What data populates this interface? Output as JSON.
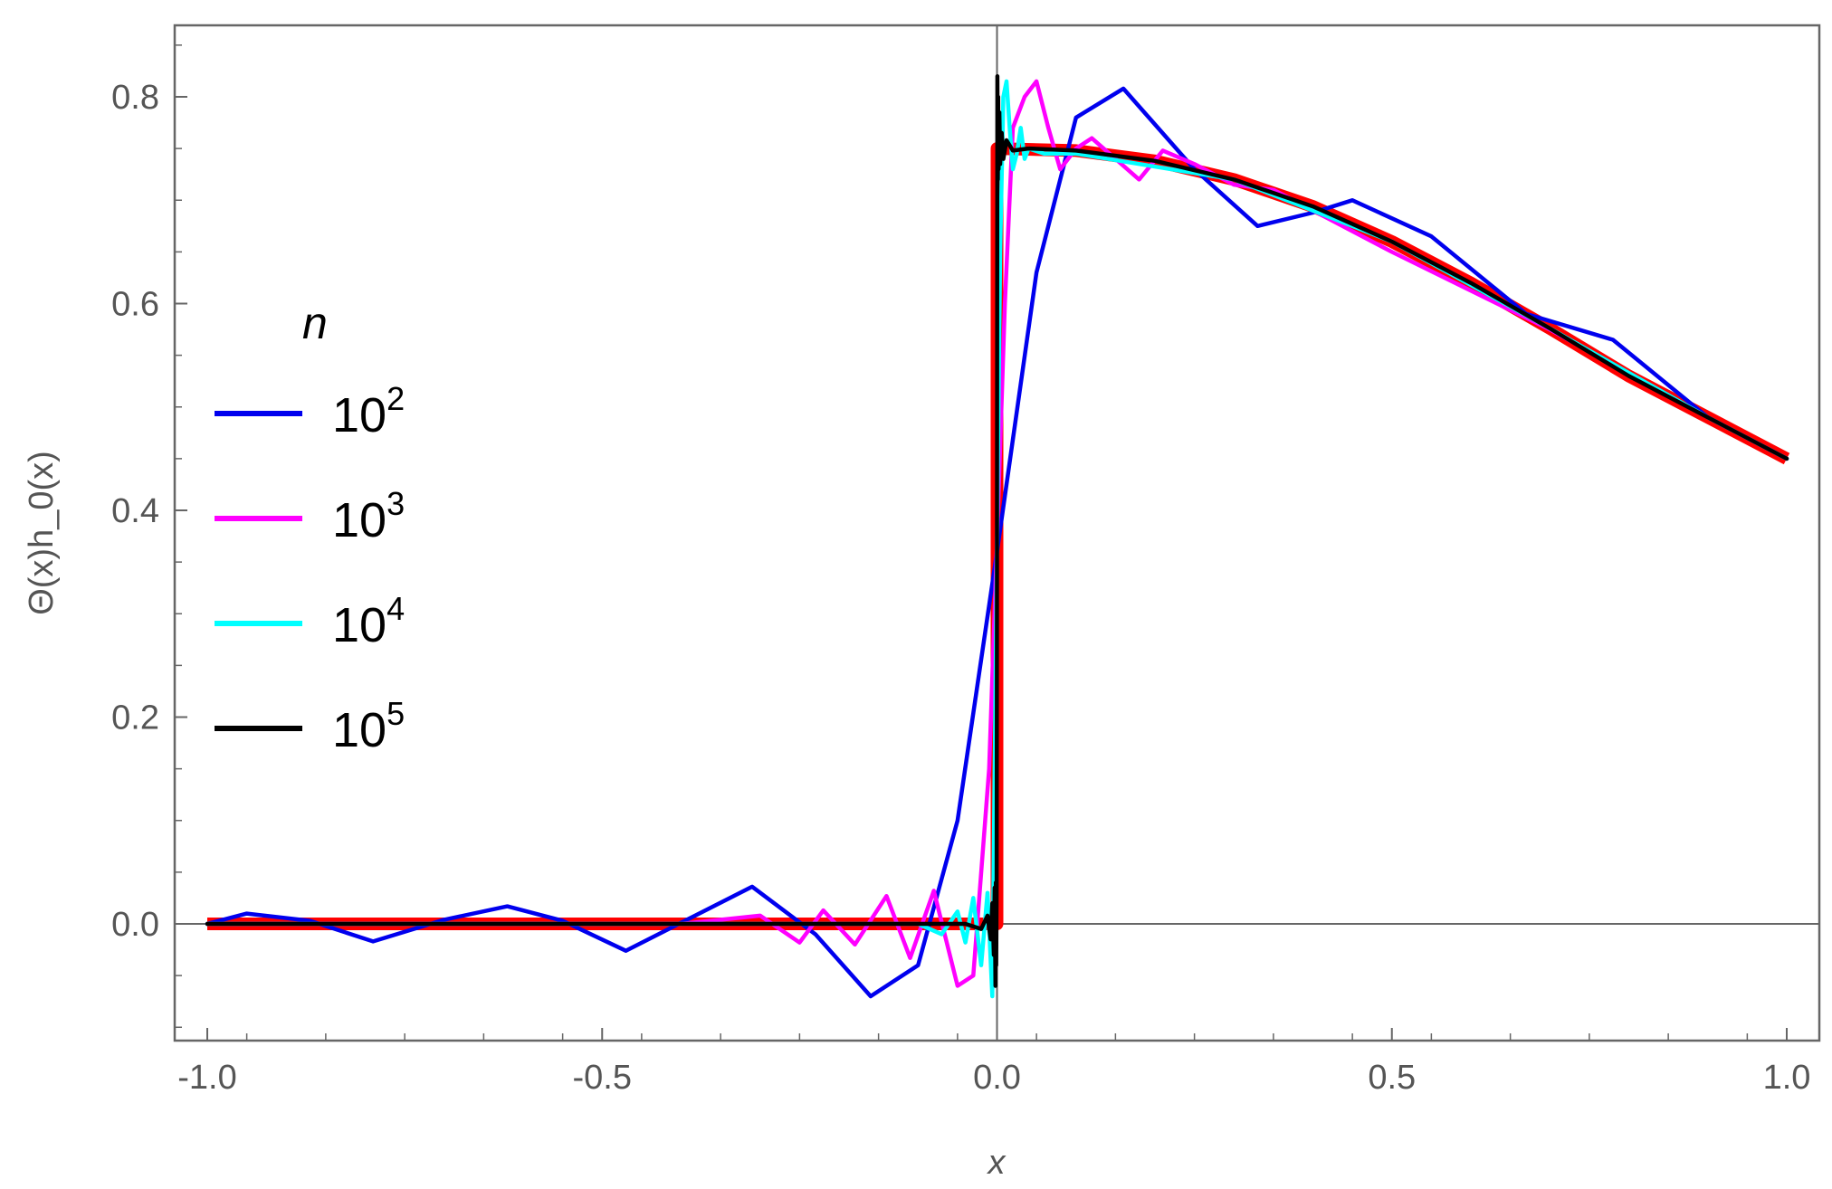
{
  "chart_data": {
    "type": "line",
    "title": "",
    "xlabel": "x",
    "ylabel": "Θ(x)h_0(x)",
    "xlim": [
      -1.0,
      1.0
    ],
    "ylim": [
      -0.115,
      0.865
    ],
    "x_ticks": [
      -1.0,
      -0.5,
      0.0,
      0.5,
      1.0
    ],
    "x_tick_labels": [
      "-1.0",
      "-0.5",
      "0.0",
      "0.5",
      "1.0"
    ],
    "y_ticks": [
      0.0,
      0.2,
      0.4,
      0.6,
      0.8
    ],
    "y_tick_labels": [
      "0.0",
      "0.2",
      "0.4",
      "0.6",
      "0.8"
    ],
    "grid": false,
    "legend": {
      "title": "n",
      "placement": "left",
      "entries": [
        {
          "base": "10",
          "exp": "2",
          "color": "#0000ee"
        },
        {
          "base": "10",
          "exp": "3",
          "color": "#ff00ff"
        },
        {
          "base": "10",
          "exp": "4",
          "color": "#00ffff"
        },
        {
          "base": "10",
          "exp": "5",
          "color": "#000000"
        }
      ]
    },
    "series": [
      {
        "color": "#ff0000",
        "x": [
          -1.0,
          0.0,
          0.0,
          0.1,
          0.2,
          0.3,
          0.4,
          0.5,
          0.6,
          0.7,
          0.8,
          0.9,
          1.0
        ],
        "y": [
          0.0,
          0.0,
          0.75,
          0.748,
          0.738,
          0.72,
          0.694,
          0.66,
          0.62,
          0.576,
          0.53,
          0.49,
          0.45
        ]
      },
      {
        "color": "#0000ee",
        "x": [
          -1.0,
          -0.95,
          -0.87,
          -0.79,
          -0.7,
          -0.62,
          -0.55,
          -0.47,
          -0.39,
          -0.31,
          -0.23,
          -0.16,
          -0.1,
          -0.05,
          0.0,
          0.05,
          0.1,
          0.16,
          0.25,
          0.33,
          0.4,
          0.45,
          0.55,
          0.67,
          0.78,
          0.9,
          1.0
        ],
        "y": [
          0.0,
          0.01,
          0.003,
          -0.017,
          0.004,
          0.017,
          0.003,
          -0.026,
          0.005,
          0.036,
          -0.01,
          -0.07,
          -0.04,
          0.1,
          0.36,
          0.63,
          0.78,
          0.808,
          0.73,
          0.675,
          0.688,
          0.7,
          0.665,
          0.59,
          0.565,
          0.49,
          0.45
        ]
      },
      {
        "color": "#ff00ff",
        "x": [
          -1.0,
          -0.4,
          -0.3,
          -0.25,
          -0.22,
          -0.18,
          -0.14,
          -0.11,
          -0.08,
          -0.05,
          -0.03,
          -0.01,
          0.0,
          0.01,
          0.02,
          0.035,
          0.05,
          0.065,
          0.08,
          0.1,
          0.12,
          0.15,
          0.18,
          0.21,
          0.25,
          0.3,
          0.35,
          0.5,
          0.7,
          0.9,
          1.0
        ],
        "y": [
          0.0,
          0.0,
          0.008,
          -0.018,
          0.013,
          -0.02,
          0.027,
          -0.033,
          0.032,
          -0.06,
          -0.05,
          0.15,
          0.37,
          0.6,
          0.77,
          0.8,
          0.815,
          0.77,
          0.73,
          0.75,
          0.76,
          0.74,
          0.72,
          0.748,
          0.735,
          0.715,
          0.71,
          0.65,
          0.575,
          0.49,
          0.45
        ]
      },
      {
        "color": "#00ffff",
        "x": [
          -1.0,
          -0.1,
          -0.07,
          -0.05,
          -0.04,
          -0.03,
          -0.02,
          -0.012,
          -0.006,
          0.0,
          0.004,
          0.008,
          0.012,
          0.016,
          0.02,
          0.025,
          0.03,
          0.035,
          0.04,
          0.06,
          0.1,
          0.3,
          0.5,
          0.7,
          0.9,
          1.0
        ],
        "y": [
          0.0,
          0.0,
          -0.01,
          0.012,
          -0.018,
          0.025,
          -0.04,
          0.03,
          -0.07,
          0.37,
          0.65,
          0.8,
          0.815,
          0.77,
          0.73,
          0.745,
          0.77,
          0.74,
          0.75,
          0.745,
          0.745,
          0.72,
          0.66,
          0.576,
          0.49,
          0.45
        ]
      },
      {
        "color": "#000000",
        "x": [
          -1.0,
          -0.04,
          -0.02,
          -0.012,
          -0.008,
          -0.006,
          -0.004,
          -0.003,
          -0.002,
          -0.0015,
          -0.001,
          -0.0005,
          0.0,
          0.0005,
          0.001,
          0.0015,
          0.002,
          0.003,
          0.004,
          0.006,
          0.008,
          0.012,
          0.02,
          0.04,
          0.1,
          0.2,
          0.3,
          0.4,
          0.5,
          0.6,
          0.7,
          0.8,
          0.9,
          1.0
        ],
        "y": [
          0.0,
          0.0,
          -0.005,
          0.008,
          -0.015,
          0.02,
          -0.03,
          0.035,
          -0.06,
          0.04,
          -0.04,
          0.03,
          0.37,
          0.82,
          0.72,
          0.8,
          0.73,
          0.785,
          0.735,
          0.765,
          0.74,
          0.758,
          0.748,
          0.75,
          0.748,
          0.738,
          0.72,
          0.694,
          0.66,
          0.62,
          0.576,
          0.53,
          0.49,
          0.45
        ]
      }
    ]
  }
}
